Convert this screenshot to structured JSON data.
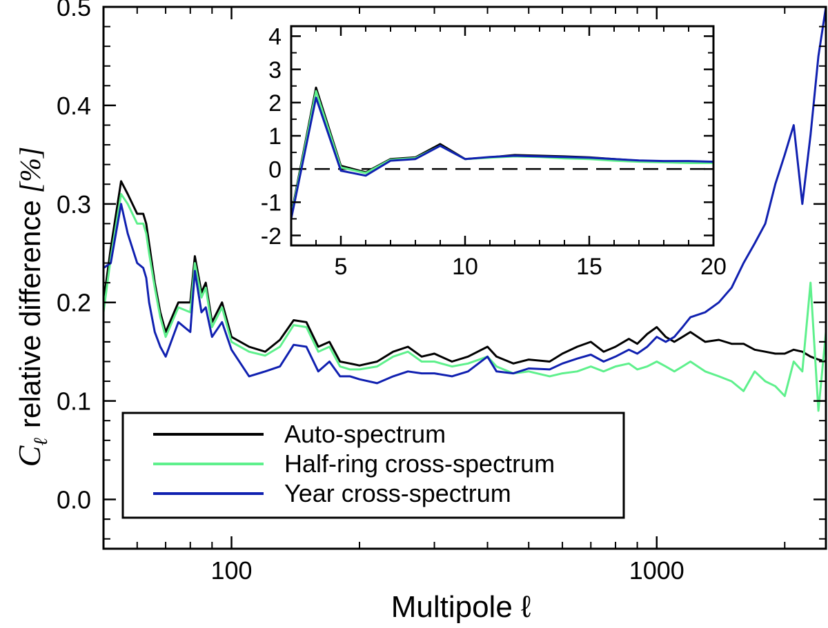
{
  "chart_data": [
    {
      "id": "main",
      "type": "line",
      "xscale": "log",
      "xlabel": "Multipole ℓ",
      "ylabel_symbol": "C",
      "ylabel_subscript": "ℓ",
      "ylabel_text": "relative difference",
      "ylabel_unit": "[%]",
      "xlim": [
        50,
        2500
      ],
      "ylim": [
        -0.05,
        0.5
      ],
      "xticks": [
        100,
        1000
      ],
      "xtick_labels": [
        "100",
        "1000"
      ],
      "yticks": [
        0.0,
        0.1,
        0.2,
        0.3,
        0.4,
        0.5
      ],
      "ytick_labels": [
        "0.0",
        "0.1",
        "0.2",
        "0.3",
        "0.4",
        "0.5"
      ],
      "legend_position": "bottom-left",
      "series": [
        {
          "name": "Auto-spectrum",
          "color": "#000000",
          "x": [
            50,
            52,
            55,
            57,
            60,
            62,
            63,
            64,
            66,
            68,
            70,
            75,
            80,
            82,
            85,
            87,
            90,
            95,
            100,
            110,
            120,
            130,
            140,
            150,
            160,
            170,
            180,
            190,
            200,
            220,
            240,
            260,
            280,
            300,
            330,
            360,
            400,
            420,
            460,
            500,
            560,
            600,
            650,
            700,
            750,
            800,
            860,
            900,
            950,
            1000,
            1050,
            1100,
            1150,
            1200,
            1300,
            1400,
            1500,
            1600,
            1700,
            1800,
            1900,
            2000,
            2100,
            2200,
            2300,
            2400,
            2500
          ],
          "y": [
            0.2,
            0.255,
            0.323,
            0.31,
            0.29,
            0.29,
            0.28,
            0.26,
            0.22,
            0.19,
            0.17,
            0.2,
            0.2,
            0.247,
            0.21,
            0.22,
            0.18,
            0.2,
            0.165,
            0.155,
            0.15,
            0.162,
            0.182,
            0.18,
            0.155,
            0.16,
            0.14,
            0.138,
            0.136,
            0.14,
            0.15,
            0.155,
            0.145,
            0.148,
            0.14,
            0.145,
            0.155,
            0.145,
            0.138,
            0.142,
            0.14,
            0.148,
            0.155,
            0.16,
            0.15,
            0.155,
            0.163,
            0.158,
            0.168,
            0.175,
            0.165,
            0.16,
            0.165,
            0.17,
            0.16,
            0.162,
            0.158,
            0.158,
            0.152,
            0.15,
            0.148,
            0.148,
            0.152,
            0.15,
            0.145,
            0.142,
            0.14
          ]
        },
        {
          "name": "Half-ring cross-spectrum",
          "color": "#5ef08c",
          "x": [
            50,
            52,
            55,
            57,
            60,
            62,
            63,
            64,
            66,
            68,
            70,
            75,
            80,
            82,
            85,
            87,
            90,
            95,
            100,
            110,
            120,
            130,
            140,
            150,
            160,
            170,
            180,
            190,
            200,
            220,
            240,
            260,
            280,
            300,
            330,
            360,
            400,
            420,
            460,
            500,
            560,
            600,
            650,
            700,
            750,
            800,
            860,
            900,
            950,
            1000,
            1050,
            1100,
            1150,
            1200,
            1300,
            1400,
            1500,
            1600,
            1700,
            1800,
            1900,
            2000,
            2100,
            2200,
            2300,
            2400,
            2500
          ],
          "y": [
            0.19,
            0.245,
            0.31,
            0.3,
            0.28,
            0.28,
            0.27,
            0.25,
            0.215,
            0.185,
            0.165,
            0.195,
            0.19,
            0.24,
            0.205,
            0.215,
            0.175,
            0.195,
            0.16,
            0.15,
            0.146,
            0.155,
            0.177,
            0.175,
            0.15,
            0.155,
            0.135,
            0.132,
            0.132,
            0.135,
            0.145,
            0.15,
            0.14,
            0.14,
            0.135,
            0.138,
            0.145,
            0.135,
            0.128,
            0.13,
            0.125,
            0.128,
            0.13,
            0.135,
            0.13,
            0.135,
            0.138,
            0.132,
            0.135,
            0.14,
            0.135,
            0.13,
            0.135,
            0.14,
            0.13,
            0.125,
            0.12,
            0.11,
            0.13,
            0.12,
            0.115,
            0.105,
            0.14,
            0.13,
            0.22,
            0.09,
            0.17
          ]
        },
        {
          "name": "Year cross-spectrum",
          "color": "#1020b0",
          "x": [
            50,
            52,
            55,
            57,
            60,
            62,
            63,
            64,
            66,
            68,
            70,
            75,
            80,
            82,
            85,
            87,
            90,
            95,
            100,
            110,
            120,
            130,
            140,
            150,
            160,
            170,
            180,
            190,
            200,
            220,
            240,
            260,
            280,
            300,
            330,
            360,
            400,
            420,
            460,
            500,
            560,
            600,
            650,
            700,
            750,
            800,
            860,
            900,
            950,
            1000,
            1050,
            1100,
            1150,
            1200,
            1300,
            1400,
            1500,
            1600,
            1700,
            1800,
            1900,
            2000,
            2100,
            2200,
            2300,
            2400,
            2500
          ],
          "y": [
            0.235,
            0.24,
            0.3,
            0.27,
            0.24,
            0.235,
            0.225,
            0.2,
            0.17,
            0.155,
            0.145,
            0.18,
            0.17,
            0.232,
            0.19,
            0.195,
            0.165,
            0.18,
            0.152,
            0.125,
            0.13,
            0.135,
            0.157,
            0.155,
            0.13,
            0.14,
            0.125,
            0.125,
            0.122,
            0.118,
            0.125,
            0.13,
            0.128,
            0.128,
            0.125,
            0.13,
            0.145,
            0.13,
            0.128,
            0.133,
            0.132,
            0.138,
            0.143,
            0.147,
            0.14,
            0.145,
            0.152,
            0.148,
            0.155,
            0.165,
            0.16,
            0.165,
            0.175,
            0.185,
            0.19,
            0.2,
            0.215,
            0.24,
            0.26,
            0.28,
            0.32,
            0.35,
            0.38,
            0.3,
            0.37,
            0.45,
            0.5
          ]
        }
      ]
    },
    {
      "id": "inset",
      "type": "line",
      "xscale": "linear",
      "xlim": [
        3,
        20
      ],
      "ylim": [
        -2.3,
        4.3
      ],
      "xticks": [
        5,
        10,
        15,
        20
      ],
      "xtick_labels": [
        "5",
        "10",
        "15",
        "20"
      ],
      "yticks": [
        -2,
        -1,
        0,
        1,
        2,
        3,
        4
      ],
      "ytick_labels": [
        "-2",
        "-1",
        "0",
        "1",
        "2",
        "3",
        "4"
      ],
      "reference_line": 0,
      "series": [
        {
          "name": "Auto-spectrum",
          "color": "#000000",
          "x": [
            3,
            4,
            5,
            6,
            7,
            8,
            9,
            10,
            11,
            12,
            13,
            14,
            15,
            16,
            17,
            18,
            19,
            20
          ],
          "y": [
            -1.4,
            2.45,
            0.1,
            -0.1,
            0.3,
            0.35,
            0.75,
            0.3,
            0.35,
            0.42,
            0.4,
            0.38,
            0.35,
            0.3,
            0.25,
            0.22,
            0.2,
            0.2
          ]
        },
        {
          "name": "Half-ring cross-spectrum",
          "color": "#5ef08c",
          "x": [
            3,
            4,
            5,
            6,
            7,
            8,
            9,
            10,
            11,
            12,
            13,
            14,
            15,
            16,
            17,
            18,
            19,
            20
          ],
          "y": [
            -1.45,
            2.35,
            0.05,
            -0.12,
            0.28,
            0.33,
            0.7,
            0.3,
            0.34,
            0.38,
            0.36,
            0.32,
            0.3,
            0.25,
            0.22,
            0.2,
            0.18,
            0.18
          ]
        },
        {
          "name": "Year cross-spectrum",
          "color": "#1020b0",
          "x": [
            3,
            4,
            5,
            6,
            7,
            8,
            9,
            10,
            11,
            12,
            13,
            14,
            15,
            16,
            17,
            18,
            19,
            20
          ],
          "y": [
            -1.5,
            2.15,
            -0.05,
            -0.2,
            0.25,
            0.3,
            0.7,
            0.3,
            0.36,
            0.4,
            0.38,
            0.36,
            0.34,
            0.3,
            0.26,
            0.24,
            0.24,
            0.22
          ]
        }
      ]
    }
  ],
  "legend": {
    "items": [
      {
        "label": "Auto-spectrum",
        "color": "#000000"
      },
      {
        "label": "Half-ring cross-spectrum",
        "color": "#5ef08c"
      },
      {
        "label": "Year cross-spectrum",
        "color": "#1020b0"
      }
    ]
  }
}
